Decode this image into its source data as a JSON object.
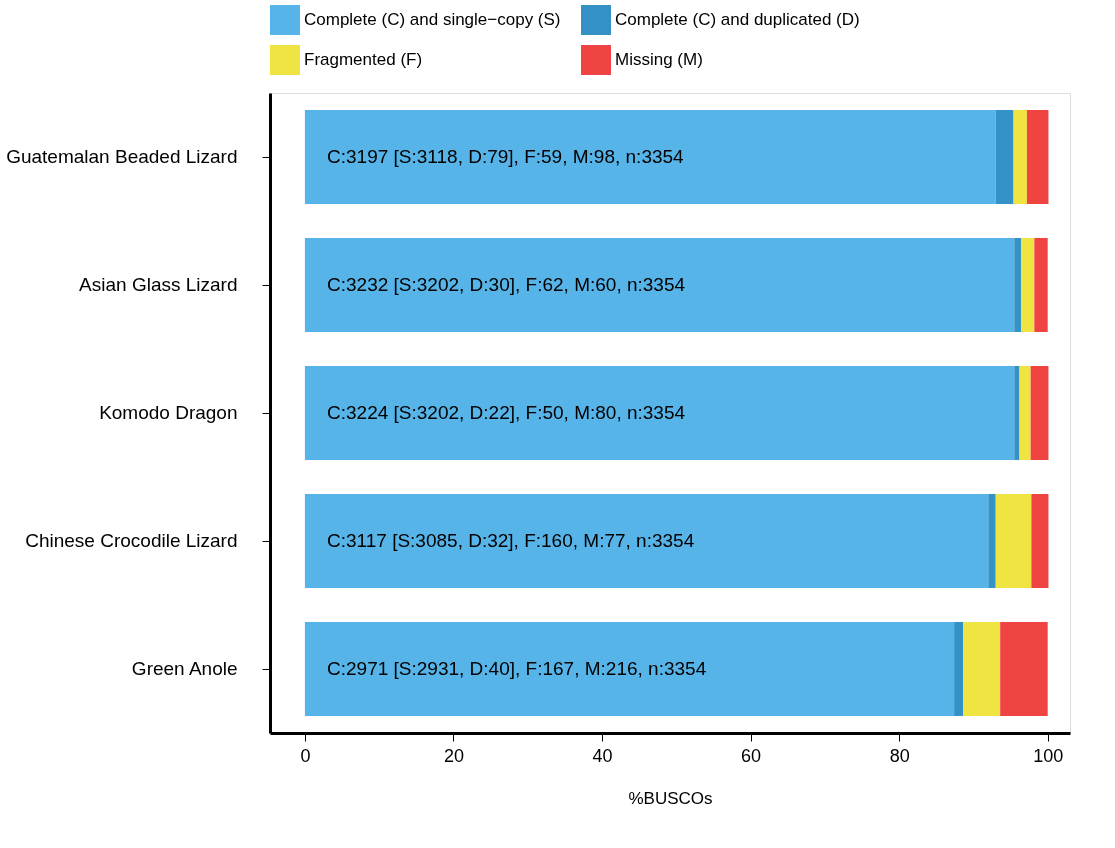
{
  "chart_data": {
    "type": "bar",
    "orientation": "horizontal",
    "stacked": true,
    "categories": [
      "Guatemalan Beaded Lizard",
      "Asian Glass Lizard",
      "Komodo Dragon",
      "Chinese Crocodile Lizard",
      "Green Anole"
    ],
    "series": [
      {
        "name": "Complete (C) and single−copy (S)",
        "color": "#56b4e9",
        "values": [
          93.0,
          95.5,
          95.5,
          92.0,
          87.4
        ]
      },
      {
        "name": "Complete (C) and duplicated (D)",
        "color": "#3492c7",
        "values": [
          2.4,
          0.9,
          0.7,
          1.0,
          1.2
        ]
      },
      {
        "name": "Fragmented (F)",
        "color": "#f0e442",
        "values": [
          1.8,
          1.8,
          1.5,
          4.8,
          5.0
        ]
      },
      {
        "name": "Missing (M)",
        "color": "#f04442",
        "values": [
          2.9,
          1.8,
          2.4,
          2.3,
          6.4
        ]
      }
    ],
    "xlim": [
      -4.7,
      103
    ],
    "xticks": [
      0,
      20,
      40,
      60,
      80,
      100
    ],
    "xlabel": "%BUSCOs",
    "legend": "top",
    "grid": false,
    "annotations": [
      "C:3197 [S:3118, D:79], F:59, M:98, n:3354",
      "C:3232 [S:3202, D:30], F:62, M:60, n:3354",
      "C:3224 [S:3202, D:22], F:50, M:80, n:3354",
      "C:3117 [S:3085, D:32], F:160, M:77, n:3354",
      "C:2971 [S:2931, D:40], F:167, M:216, n:3354"
    ]
  }
}
